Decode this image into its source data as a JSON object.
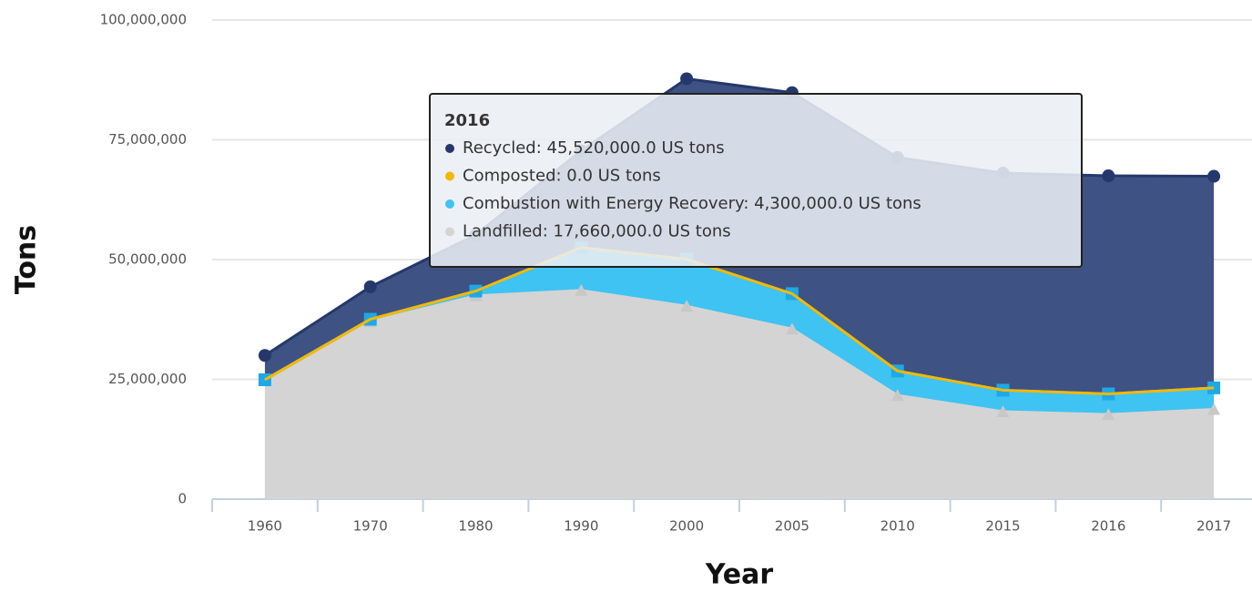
{
  "chart_data": {
    "type": "stacked-area",
    "x_label": "Year",
    "y_label": "Tons",
    "categories": [
      "1960",
      "1970",
      "1980",
      "1990",
      "2000",
      "2005",
      "2010",
      "2015",
      "2016",
      "2017"
    ],
    "series": [
      {
        "name": "Landfilled",
        "color": "#d4d4d4",
        "values": [
          24910000,
          37040000,
          42430000,
          43570000,
          40250000,
          35500000,
          21650000,
          18250000,
          17660000,
          18730000
        ]
      },
      {
        "name": "Combustion with Energy Recovery",
        "color": "#3ec3f2",
        "values": [
          0,
          500000,
          990000,
          8930000,
          9810000,
          7380000,
          5090000,
          4480000,
          4300000,
          4490000
        ]
      },
      {
        "name": "Composted",
        "color": "#f5b800",
        "values": [
          0,
          0,
          0,
          0,
          0,
          0,
          0,
          0,
          0,
          0
        ]
      },
      {
        "name": "Recycled",
        "color": "#24386b",
        "values": [
          5080000,
          6770000,
          11740000,
          20230000,
          37680000,
          41960000,
          44570000,
          45320000,
          45520000,
          44170000
        ]
      }
    ],
    "ylim": [
      0,
      100000000
    ],
    "yticks": [
      0,
      {
        "value": 25000000,
        "label": "25,000,000"
      },
      {
        "value": 50000000,
        "label": "50,000,000"
      },
      {
        "value": 75000000,
        "label": "75,000,000"
      },
      {
        "value": 100000000,
        "label": "100,000,000"
      }
    ],
    "grid": true,
    "tooltip": {
      "title": "2016",
      "items": [
        {
          "text": "Recycled: 45,520,000.0 US tons",
          "color": "#24386b"
        },
        {
          "text": "Composted: 0.0 US tons",
          "color": "#f5b800"
        },
        {
          "text": "Combustion with Energy Recovery: 4,300,000.0 US tons",
          "color": "#3ec3f2"
        },
        {
          "text": "Landfilled: 17,660,000.0 US tons",
          "color": "#d4d4d4"
        }
      ]
    }
  }
}
